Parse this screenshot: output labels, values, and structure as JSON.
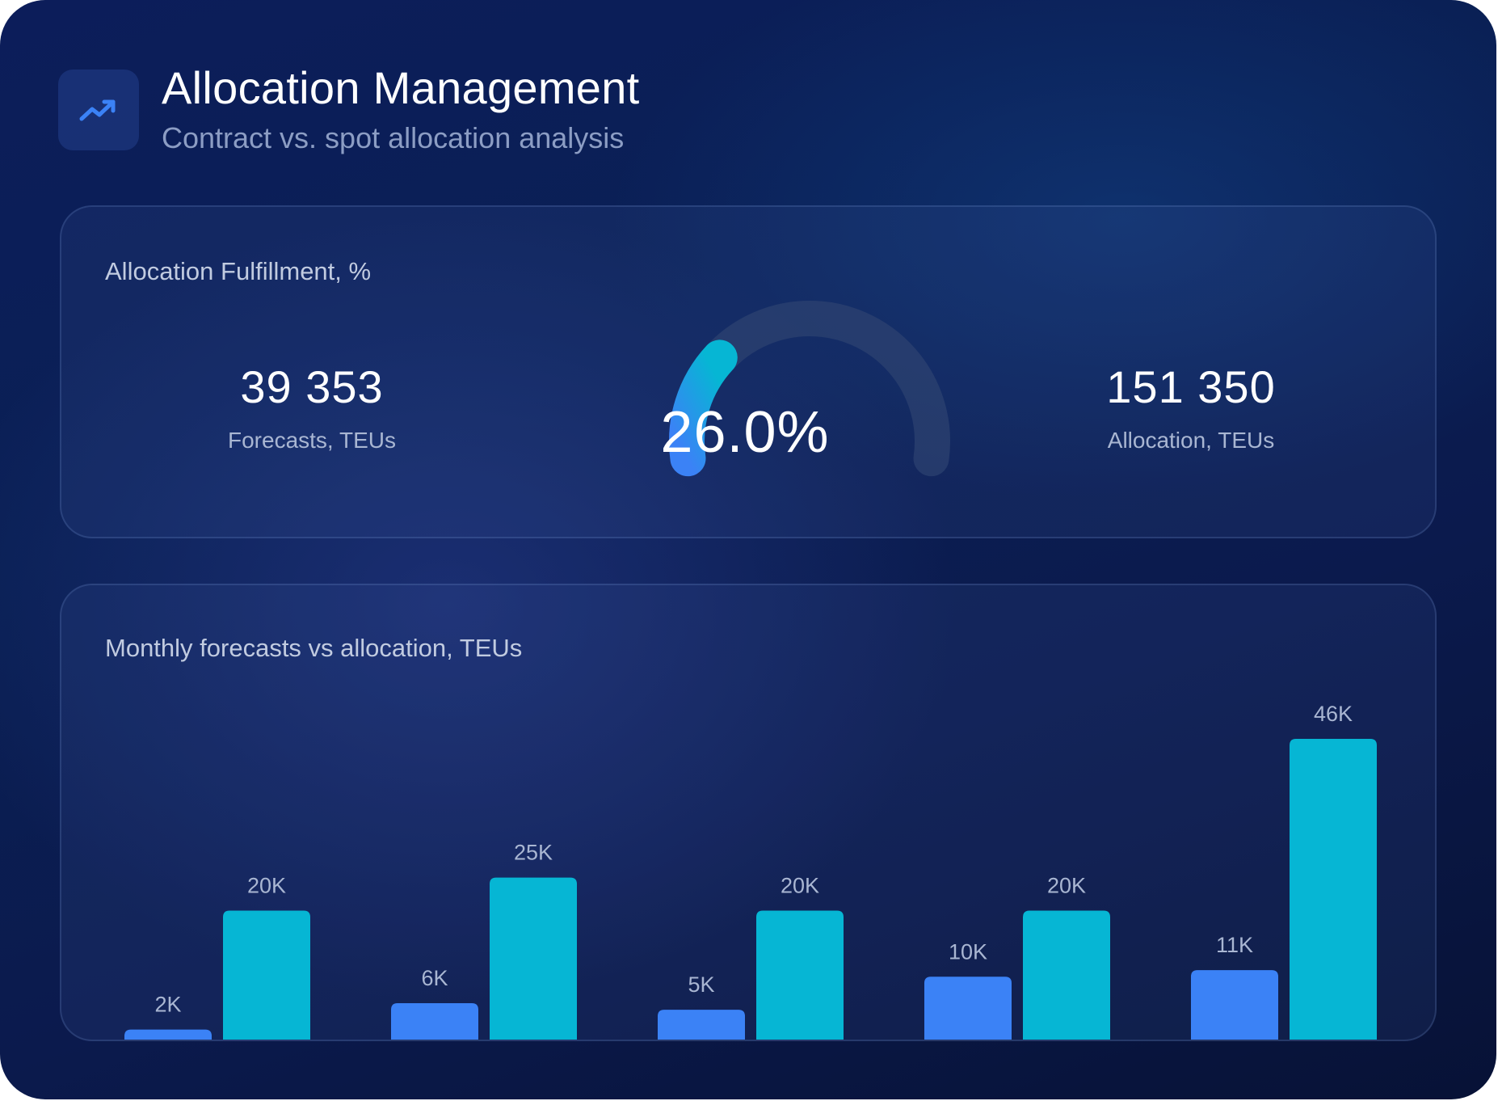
{
  "header": {
    "icon": "trending-up-icon",
    "title": "Allocation Management",
    "subtitle": "Contract vs. spot allocation analysis"
  },
  "fulfillment": {
    "title": "Allocation Fulfillment, %",
    "forecasts_value": "39 353",
    "forecasts_label": "Forecasts, TEUs",
    "percent_text": "26.0%",
    "percent_fraction": 0.26,
    "allocation_value": "151 350",
    "allocation_label": "Allocation, TEUs"
  },
  "colors": {
    "forecast": "#3b82f6",
    "allocation": "#06b6d4",
    "gauge_track": "#2c4270"
  },
  "chart_data": {
    "type": "bar",
    "title": "Monthly forecasts vs allocation, TEUs",
    "categories": [
      "",
      "",
      "",
      "",
      ""
    ],
    "series": [
      {
        "name": "Forecasts",
        "values": [
          2,
          6,
          5,
          10,
          11
        ],
        "labels": [
          "2K",
          "6K",
          "5K",
          "10K",
          "11K"
        ]
      },
      {
        "name": "Allocation",
        "values": [
          20,
          25,
          20,
          20,
          46
        ],
        "labels": [
          "20K",
          "25K",
          "20K",
          "20K",
          "46K"
        ]
      }
    ],
    "unit": "K TEUs",
    "ylim": [
      0,
      46
    ],
    "grid": false
  }
}
